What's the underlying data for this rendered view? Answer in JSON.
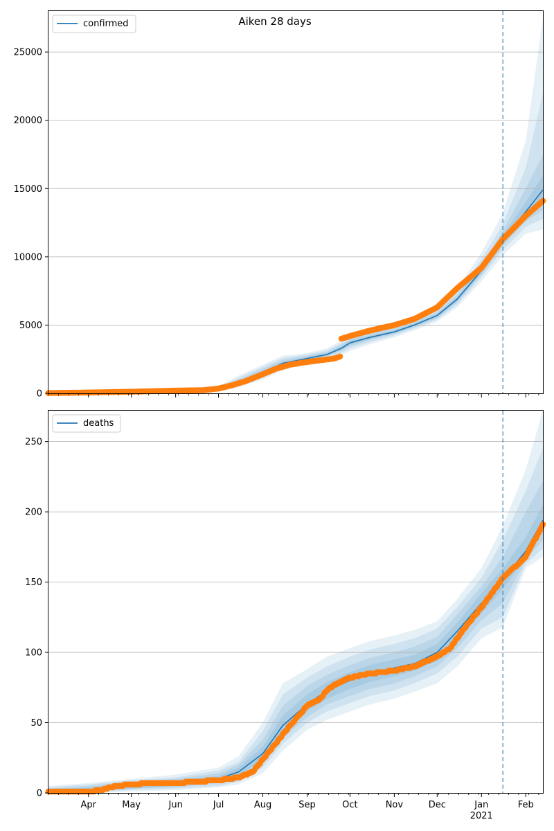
{
  "title": "Aiken 28 days",
  "colors": {
    "line": "#1f77b4",
    "points": "#ff7f0e",
    "band": "#1f77b4",
    "grid": "#b0b0b0",
    "forecast_marker": "#1f77b4"
  },
  "x_axis": {
    "start": "2020-03-04",
    "end": "2021-02-13",
    "month_ticks": [
      {
        "date": "2020-04-01",
        "label": "Apr"
      },
      {
        "date": "2020-05-01",
        "label": "May"
      },
      {
        "date": "2020-06-01",
        "label": "Jun"
      },
      {
        "date": "2020-07-01",
        "label": "Jul"
      },
      {
        "date": "2020-08-01",
        "label": "Aug"
      },
      {
        "date": "2020-09-01",
        "label": "Sep"
      },
      {
        "date": "2020-10-01",
        "label": "Oct"
      },
      {
        "date": "2020-11-01",
        "label": "Nov"
      },
      {
        "date": "2020-12-01",
        "label": "Dec"
      },
      {
        "date": "2021-01-01",
        "label": "Jan"
      },
      {
        "date": "2021-02-01",
        "label": "Feb"
      }
    ],
    "year_label": {
      "date": "2021-01-01",
      "label": "2021"
    }
  },
  "forecast_start": "2021-01-16",
  "chart_data": [
    {
      "type": "line",
      "series_name": "confirmed",
      "legend": "confirmed",
      "ylim": [
        0,
        28000
      ],
      "yticks": [
        0,
        5000,
        10000,
        15000,
        20000,
        25000
      ],
      "grid": true,
      "legend_position": "top-left",
      "model": {
        "dates": [
          "2020-03-04",
          "2020-04-01",
          "2020-05-01",
          "2020-06-01",
          "2020-07-01",
          "2020-07-15",
          "2020-08-01",
          "2020-08-15",
          "2020-09-01",
          "2020-09-15",
          "2020-09-25",
          "2020-10-01",
          "2020-10-15",
          "2020-11-01",
          "2020-11-15",
          "2020-12-01",
          "2020-12-15",
          "2021-01-01",
          "2021-01-16",
          "2021-02-01",
          "2021-02-13"
        ],
        "median": [
          20,
          60,
          120,
          200,
          320,
          800,
          1500,
          2200,
          2550,
          2850,
          3300,
          3700,
          4100,
          4500,
          5000,
          5700,
          6900,
          9000,
          11300,
          13300,
          14900
        ],
        "bands": [
          {
            "lower": [
              0,
              0,
              30,
              90,
              180,
              450,
              1000,
              1700,
              2200,
              2500,
              2800,
              3100,
              3600,
              4100,
              4600,
              5250,
              6300,
              8200,
              10100,
              11700,
              12000
            ],
            "upper": [
              80,
              160,
              260,
              360,
              520,
              1300,
              2100,
              2750,
              2950,
              3300,
              3850,
              4300,
              4650,
              5050,
              5550,
              6300,
              7700,
              10300,
              13200,
              18500,
              27500
            ]
          },
          {
            "lower": [
              0,
              10,
              60,
              130,
              230,
              560,
              1150,
              1850,
              2300,
              2600,
              2950,
              3300,
              3750,
              4250,
              4750,
              5400,
              6500,
              8500,
              10500,
              12200,
              12800
            ],
            "upper": [
              60,
              130,
              220,
              310,
              450,
              1150,
              1950,
              2600,
              2850,
              3150,
              3700,
              4100,
              4500,
              4900,
              5400,
              6100,
              7400,
              9800,
              12400,
              16500,
              22000
            ]
          },
          {
            "lower": [
              0,
              25,
              80,
              160,
              270,
              650,
              1300,
              2000,
              2400,
              2700,
              3100,
              3450,
              3900,
              4350,
              4850,
              5500,
              6650,
              8700,
              10800,
              12600,
              13400
            ],
            "upper": [
              45,
              110,
              190,
              280,
              400,
              1000,
              1800,
              2450,
              2750,
              3050,
              3550,
              3950,
              4350,
              4750,
              5250,
              5950,
              7200,
              9400,
              11900,
              15000,
              17500
            ]
          },
          {
            "lower": [
              5,
              35,
              95,
              175,
              295,
              730,
              1400,
              2100,
              2480,
              2780,
              3200,
              3580,
              4000,
              4430,
              4930,
              5600,
              6780,
              8850,
              11050,
              12950,
              14100
            ],
            "upper": [
              35,
              90,
              150,
              235,
              350,
              880,
              1650,
              2320,
              2650,
              2940,
              3420,
              3840,
              4220,
              4600,
              5090,
              5820,
              7050,
              9180,
              11600,
              14000,
              16000
            ]
          }
        ]
      },
      "observed": {
        "segments": [
          {
            "dates": [
              "2020-03-04",
              "2020-04-01",
              "2020-05-01",
              "2020-06-01",
              "2020-06-20",
              "2020-07-01",
              "2020-07-10",
              "2020-07-20",
              "2020-08-01",
              "2020-08-10",
              "2020-08-20",
              "2020-09-01",
              "2020-09-10",
              "2020-09-20",
              "2020-09-24"
            ],
            "values": [
              20,
              60,
              120,
              200,
              230,
              350,
              580,
              900,
              1400,
              1800,
              2100,
              2300,
              2420,
              2550,
              2700
            ]
          },
          {
            "dates": [
              "2020-09-25",
              "2020-10-01",
              "2020-10-15",
              "2020-11-01",
              "2020-11-15",
              "2020-12-01",
              "2020-12-15",
              "2021-01-01",
              "2021-01-16",
              "2021-02-01",
              "2021-02-13"
            ],
            "values": [
              4000,
              4200,
              4600,
              5000,
              5450,
              6300,
              7700,
              9200,
              11300,
              13000,
              14100
            ]
          }
        ]
      }
    },
    {
      "type": "line",
      "series_name": "deaths",
      "legend": "deaths",
      "ylim": [
        0,
        272
      ],
      "yticks": [
        0,
        50,
        100,
        150,
        200,
        250
      ],
      "grid": true,
      "legend_position": "top-left",
      "model": {
        "dates": [
          "2020-03-04",
          "2020-04-01",
          "2020-05-01",
          "2020-06-01",
          "2020-07-01",
          "2020-07-15",
          "2020-08-01",
          "2020-08-15",
          "2020-09-01",
          "2020-09-15",
          "2020-10-01",
          "2020-10-15",
          "2020-11-01",
          "2020-11-15",
          "2020-12-01",
          "2020-12-15",
          "2021-01-01",
          "2021-01-16",
          "2021-02-01",
          "2021-02-13"
        ],
        "median": [
          0,
          2,
          5,
          7,
          10,
          15,
          28,
          48,
          63,
          73,
          80,
          85,
          89,
          92,
          100,
          115,
          135,
          152,
          172,
          194
        ],
        "bands": [
          {
            "lower": [
              0,
              0,
              1,
              2,
              4,
              6,
              14,
              30,
              45,
              52,
              58,
              63,
              67,
              72,
              78,
              90,
              110,
              118,
              160,
              168
            ],
            "upper": [
              5,
              7,
              10,
              13,
              18,
              26,
              50,
              78,
              88,
              97,
              103,
              108,
              112,
              116,
              122,
              138,
              160,
              190,
              230,
              272
            ]
          },
          {
            "lower": [
              0,
              0,
              2,
              3,
              5,
              8,
              18,
              35,
              50,
              58,
              64,
              69,
              73,
              78,
              85,
              97,
              117,
              125,
              163,
              174
            ],
            "upper": [
              4,
              6,
              9,
              11,
              16,
              22,
              44,
              70,
              82,
              90,
              97,
              102,
              106,
              110,
              117,
              132,
              153,
              180,
              215,
              245
            ]
          },
          {
            "lower": [
              0,
              1,
              3,
              4,
              7,
              10,
              21,
              39,
              54,
              63,
              69,
              74,
              78,
              83,
              90,
              103,
              123,
              135,
              166,
              180
            ],
            "upper": [
              3,
              5,
              8,
              10,
              14,
              20,
              38,
              62,
              76,
              84,
              91,
              96,
              100,
              104,
              111,
              127,
              147,
              168,
              200,
              222
            ]
          },
          {
            "lower": [
              0,
              1,
              3,
              5,
              8,
              12,
              24,
              43,
              58,
              67,
              74,
              79,
              83,
              87,
              94,
              108,
              128,
              145,
              168,
              186
            ],
            "upper": [
              2,
              4,
              7,
              9,
              12,
              18,
              33,
              55,
              70,
              79,
              86,
              91,
              95,
              98,
              106,
              121,
              142,
              160,
              182,
              205
            ]
          }
        ]
      },
      "observed": {
        "segments": [
          {
            "dates": [
              "2020-03-04",
              "2020-04-01",
              "2020-04-10",
              "2020-04-20",
              "2020-05-01",
              "2020-05-15",
              "2020-06-01",
              "2020-06-15",
              "2020-07-01",
              "2020-07-15",
              "2020-07-25",
              "2020-08-01",
              "2020-08-10",
              "2020-08-20",
              "2020-08-27",
              "2020-09-01",
              "2020-09-10",
              "2020-09-15",
              "2020-09-20",
              "2020-10-01",
              "2020-10-15",
              "2020-11-01",
              "2020-11-15",
              "2020-12-01",
              "2020-12-10",
              "2020-12-20",
              "2021-01-01",
              "2021-01-16",
              "2021-02-01",
              "2021-02-13"
            ],
            "values": [
              1,
              1,
              2,
              5,
              6,
              7,
              7,
              8,
              9,
              11,
              15,
              24,
              35,
              48,
              56,
              62,
              67,
              73,
              77,
              82,
              85,
              87,
              90,
              97,
              103,
              117,
              132,
              153,
              168,
              191
            ]
          }
        ]
      }
    }
  ]
}
